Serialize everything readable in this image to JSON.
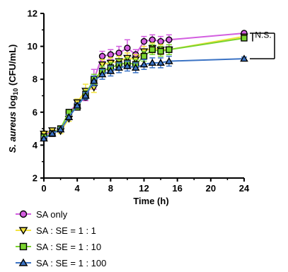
{
  "chart_data": {
    "type": "line",
    "xlabel": "Time (h)",
    "ylabel_prefix": "S. aureus",
    "ylabel_log": "log",
    "ylabel_sub": "10",
    "ylabel_suffix": "(CFU/mL)",
    "xlim": [
      0,
      24
    ],
    "ylim": [
      2,
      12
    ],
    "xticks": [
      0,
      4,
      8,
      12,
      16,
      20,
      24
    ],
    "yticks": [
      2,
      4,
      6,
      8,
      10,
      12
    ],
    "annotation": "N.S.",
    "x": [
      0,
      1,
      2,
      3,
      4,
      5,
      6,
      7,
      8,
      9,
      10,
      11,
      12,
      13,
      14,
      15,
      24
    ],
    "series": [
      {
        "name": "SA only",
        "marker": "circle",
        "fill": "#d35ee0",
        "values": [
          4.7,
          4.75,
          5.0,
          6.0,
          6.5,
          6.9,
          8.0,
          9.4,
          9.5,
          9.6,
          9.9,
          9.5,
          10.3,
          10.4,
          10.3,
          10.4,
          10.8
        ],
        "errors": [
          0.1,
          0.1,
          0.1,
          0.15,
          0.15,
          0.2,
          0.6,
          0.3,
          0.3,
          0.4,
          0.5,
          0.3,
          0.3,
          0.3,
          0.3,
          0.3,
          0.1
        ]
      },
      {
        "name": "SA : SE = 1 : 1",
        "marker": "triangle-down",
        "fill": "#f2e33f",
        "values": [
          4.7,
          4.9,
          4.85,
          5.6,
          6.6,
          7.3,
          7.5,
          8.9,
          9.0,
          9.1,
          9.3,
          9.2,
          9.7,
          9.9,
          9.8,
          9.8,
          10.6
        ],
        "errors": [
          0.1,
          0.1,
          0.15,
          0.15,
          0.2,
          0.4,
          0.3,
          0.3,
          0.3,
          0.3,
          0.3,
          0.3,
          0.3,
          0.3,
          0.3,
          0.3,
          0.1
        ]
      },
      {
        "name": "SA : SE = 1 : 10",
        "marker": "square",
        "fill": "#7bd42f",
        "values": [
          4.5,
          4.7,
          5.0,
          6.0,
          6.3,
          7.1,
          8.0,
          8.5,
          8.7,
          8.9,
          9.0,
          8.9,
          9.4,
          9.8,
          9.7,
          9.8,
          10.5
        ],
        "errors": [
          0.1,
          0.1,
          0.1,
          0.15,
          0.15,
          0.2,
          0.3,
          0.3,
          0.3,
          0.3,
          0.3,
          0.3,
          0.3,
          0.3,
          0.3,
          0.3,
          0.1
        ]
      },
      {
        "name": "SA : SE = 1 : 100",
        "marker": "triangle-up",
        "fill": "#3b73c4",
        "values": [
          4.4,
          4.7,
          4.95,
          5.7,
          6.4,
          7.0,
          7.9,
          8.3,
          8.5,
          8.7,
          8.8,
          8.7,
          8.9,
          9.0,
          9.0,
          9.1,
          9.25
        ],
        "errors": [
          0.1,
          0.1,
          0.1,
          0.15,
          0.15,
          0.2,
          0.3,
          0.3,
          0.3,
          0.3,
          0.3,
          0.3,
          0.3,
          0.3,
          0.3,
          0.3,
          0.1
        ]
      }
    ],
    "legend_position": "bottom-left"
  }
}
